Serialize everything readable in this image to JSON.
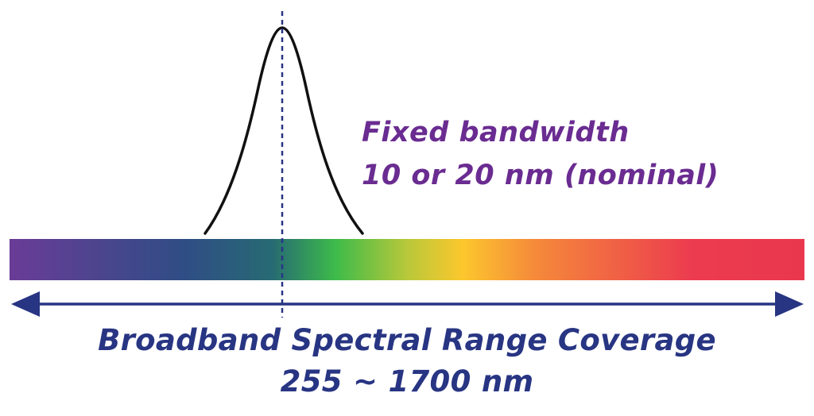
{
  "bandwidth": {
    "line1": "Fixed bandwidth",
    "line2": "10 or 20 nm (nominal)"
  },
  "coverage": {
    "line1": "Broadband Spectral Range Coverage",
    "line2": "255 ~ 1700 nm"
  },
  "colors": {
    "bandwidth_text": "#6a2c91",
    "coverage_text": "#283583",
    "arrow": "#283583",
    "peak_curve": "#111111",
    "center_line": "#283583",
    "spectrum": [
      "#6a3c97",
      "#2f4d85",
      "#276a73",
      "#3dbb4a",
      "#b8c83a",
      "#fcc72d",
      "#f58a3a",
      "#ec3b4f",
      "#e9384d"
    ]
  },
  "icons": {
    "left_arrowhead": "arrowhead-left-icon",
    "right_arrowhead": "arrowhead-right-icon"
  }
}
